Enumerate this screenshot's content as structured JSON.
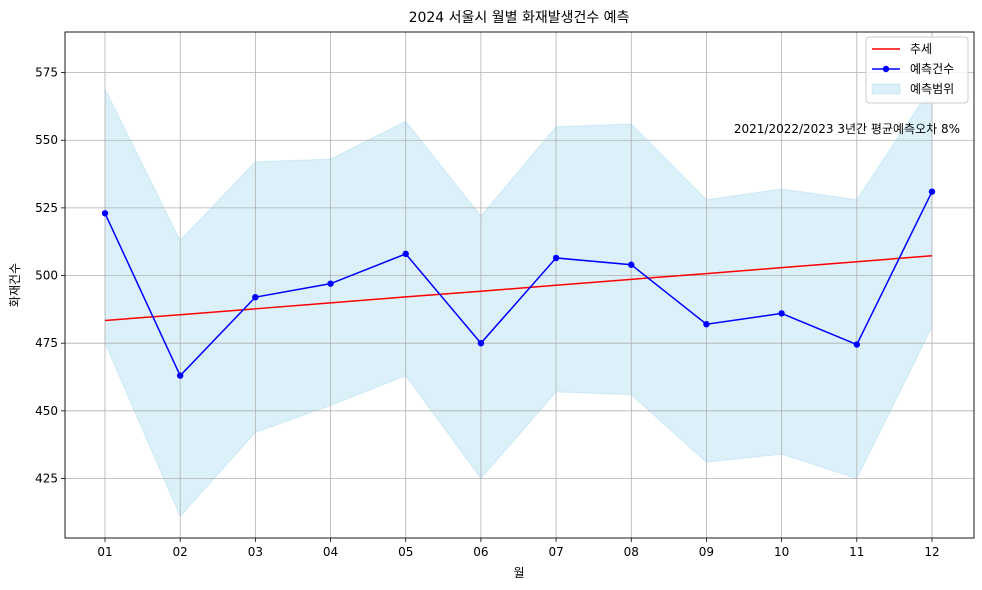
{
  "chart_data": {
    "type": "line",
    "title": "2024 서울시 월별 화재발생건수 예측",
    "xlabel": "월",
    "ylabel": "화재건수",
    "categories": [
      "01",
      "02",
      "03",
      "04",
      "05",
      "06",
      "07",
      "08",
      "09",
      "10",
      "11",
      "12"
    ],
    "ylim": [
      403,
      590
    ],
    "yticks": [
      425,
      450,
      475,
      500,
      525,
      550,
      575
    ],
    "grid": true,
    "legend_position": "top-right",
    "series": [
      {
        "name": "추세",
        "kind": "line",
        "color": "#ff0000",
        "values": [
          483.4,
          485.5,
          487.7,
          489.9,
          492.1,
          494.2,
          496.4,
          498.6,
          500.7,
          502.9,
          505.1,
          507.3
        ]
      },
      {
        "name": "예측건수",
        "kind": "line-marker",
        "color": "#0000ff",
        "values": [
          523,
          463,
          492,
          497,
          508,
          475,
          506.5,
          504,
          482,
          486,
          474.5,
          531
        ]
      },
      {
        "name": "예측범위",
        "kind": "band",
        "color": "#87ceeb",
        "lower": [
          475,
          411,
          442,
          452,
          463,
          425,
          457,
          456,
          431,
          434,
          425,
          481
        ],
        "upper": [
          569,
          513,
          542,
          543,
          557,
          522,
          555,
          556,
          528,
          532,
          528,
          570
        ]
      }
    ],
    "annotation": "2021/2022/2023 3년간 평균예측오차 8%"
  }
}
